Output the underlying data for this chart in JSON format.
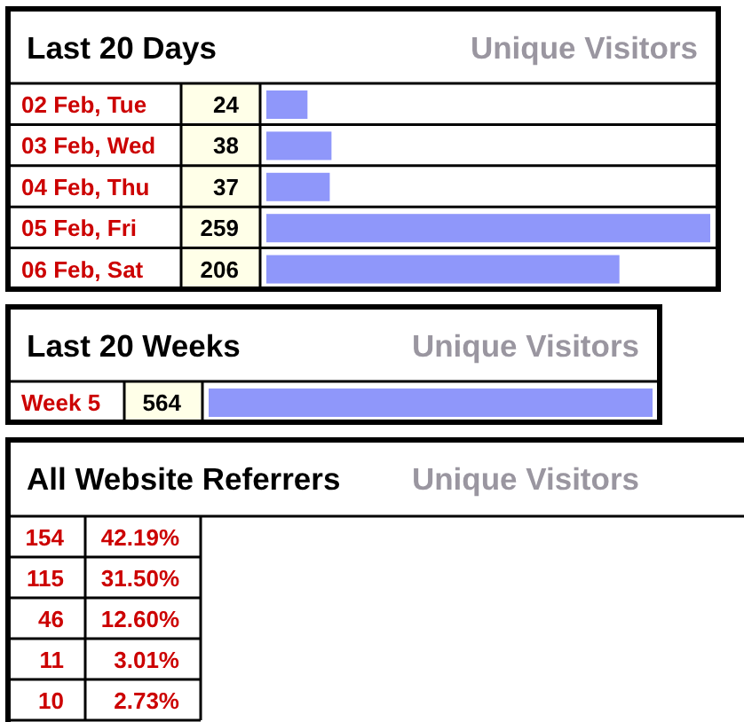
{
  "chart_data": [
    {
      "type": "bar",
      "orientation": "horizontal",
      "title": "Last 20 Days",
      "subtitle": "Unique Visitors",
      "categories": [
        "02 Feb, Tue",
        "03 Feb, Wed",
        "04 Feb, Thu",
        "05 Feb, Fri",
        "06 Feb, Sat"
      ],
      "values": [
        24,
        38,
        37,
        259,
        206
      ],
      "color": "#8f97fa",
      "data_labels": true
    },
    {
      "type": "bar",
      "orientation": "horizontal",
      "title": "Last 20 Weeks",
      "subtitle": "Unique Visitors",
      "categories": [
        "Week 5"
      ],
      "values": [
        564
      ],
      "color": "#8f97fa",
      "data_labels": true
    },
    {
      "type": "other",
      "title": "All Website Referrers",
      "subtitle": "Unique Visitors",
      "categories": [
        null,
        null,
        null,
        null,
        null
      ],
      "values": [
        154,
        115,
        46,
        11,
        10
      ],
      "data_labels": true
    },
    {
      "type": "other",
      "categories": [
        null,
        null,
        null,
        null,
        null
      ],
      "values": [
        42.19,
        31.5,
        12.6,
        3.01,
        2.73
      ],
      "value_labels": [
        "42.19%",
        "31.50%",
        "12.60%",
        "3.01%",
        "2.73%"
      ]
    }
  ]
}
